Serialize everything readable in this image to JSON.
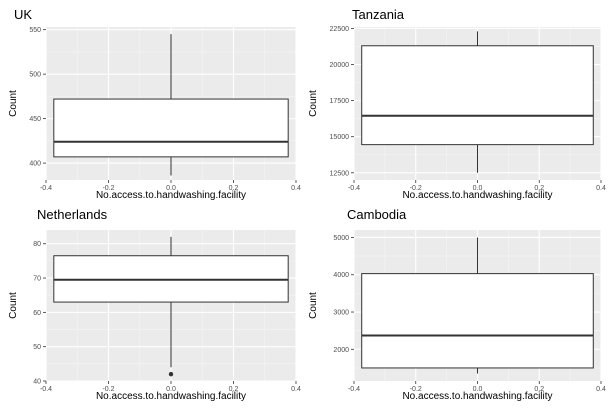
{
  "chart_data": [
    {
      "type": "boxplot",
      "title": "UK",
      "xlabel": "No.access.to.handwashing.facility",
      "ylabel": "Count",
      "xlim": [
        -0.4,
        0.4
      ],
      "xticks": [
        -0.4,
        -0.2,
        0.0,
        0.2,
        0.4
      ],
      "xtick_labels": [
        "-0.4",
        "-0.2",
        "0.0",
        "0.2",
        "0.4"
      ],
      "ylim": [
        381,
        553
      ],
      "yticks": [
        400,
        450,
        500,
        550
      ],
      "ytick_labels": [
        "400",
        "450",
        "500",
        "550"
      ],
      "box": {
        "min": 386,
        "q1": 407,
        "median": 424,
        "q3": 472,
        "max": 545,
        "outliers": []
      },
      "grid": true
    },
    {
      "type": "boxplot",
      "title": "Tanzania",
      "xlabel": "No.access.to.handwashing.facility",
      "ylabel": "Count",
      "xlim": [
        -0.4,
        0.4
      ],
      "xticks": [
        -0.4,
        -0.2,
        0.0,
        0.2,
        0.4
      ],
      "xtick_labels": [
        "-0.4",
        "-0.2",
        "0.0",
        "0.2",
        "0.4"
      ],
      "ylim": [
        12000,
        22600
      ],
      "yticks": [
        12500,
        15000,
        17500,
        20000,
        22500
      ],
      "ytick_labels": [
        "12500",
        "15000",
        "17500",
        "20000",
        "22500"
      ],
      "box": {
        "min": 12500,
        "q1": 14450,
        "median": 16450,
        "q3": 21300,
        "max": 22300,
        "outliers": []
      },
      "grid": true
    },
    {
      "type": "boxplot",
      "title": "Netherlands",
      "xlabel": "No.access.to.handwashing.facility",
      "ylabel": "Count",
      "xlim": [
        -0.4,
        0.4
      ],
      "xticks": [
        -0.4,
        -0.2,
        0.0,
        0.2,
        0.4
      ],
      "xtick_labels": [
        "-0.4",
        "-0.2",
        "0.0",
        "0.2",
        "0.4"
      ],
      "ylim": [
        40,
        84
      ],
      "yticks": [
        40,
        50,
        60,
        70,
        80
      ],
      "ytick_labels": [
        "40",
        "50",
        "60",
        "70",
        "80"
      ],
      "box": {
        "min": 44,
        "q1": 63,
        "median": 69.5,
        "q3": 76.5,
        "max": 82,
        "outliers": [
          42
        ]
      },
      "grid": true
    },
    {
      "type": "boxplot",
      "title": "Cambodia",
      "xlabel": "No.access.to.handwashing.facility",
      "ylabel": "Count",
      "xlim": [
        -0.4,
        0.4
      ],
      "xticks": [
        -0.4,
        -0.2,
        0.0,
        0.2,
        0.4
      ],
      "xtick_labels": [
        "-0.4",
        "-0.2",
        "0.0",
        "0.2",
        "0.4"
      ],
      "ylim": [
        1150,
        5200
      ],
      "yticks": [
        2000,
        3000,
        4000,
        5000
      ],
      "ytick_labels": [
        "2000",
        "3000",
        "4000",
        "5000"
      ],
      "box": {
        "min": 1350,
        "q1": 1500,
        "median": 2370,
        "q3": 4030,
        "max": 5000,
        "outliers": []
      },
      "grid": true
    }
  ]
}
